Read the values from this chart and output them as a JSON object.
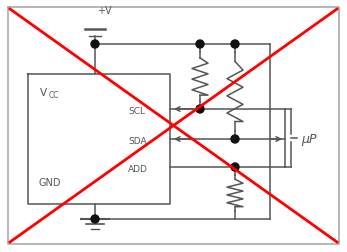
{
  "fig_width": 3.47,
  "fig_height": 2.53,
  "dpi": 100,
  "background_color": "#ffffff",
  "line_color": "#555555",
  "red_color": "#ff0000",
  "dot_color": "#111111",
  "labels": {
    "vcc": "V",
    "vcc_sub": "CC",
    "gnd": "GND",
    "scl": "SCL",
    "sda": "SDA",
    "add": "ADD",
    "vplus": "+V",
    "up": "μP"
  }
}
